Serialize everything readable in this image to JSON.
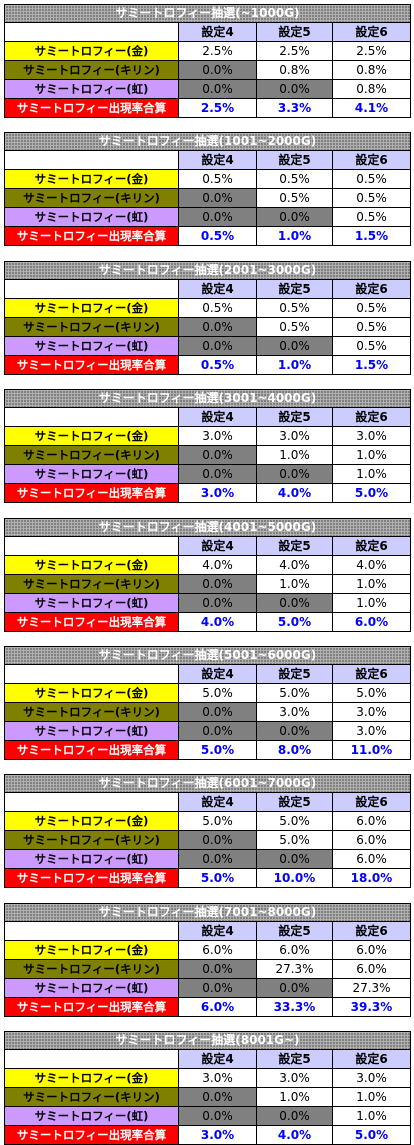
{
  "headers": [
    "設定4",
    "設定5",
    "設定6"
  ],
  "row_labels": {
    "gold": "サミートロフィー(金)",
    "kirin": "サミートロフィー(キリン)",
    "niji": "サミートロフィー(虹)",
    "total": "サミートロフィー出現率合算"
  },
  "colors": {
    "gold_row": "#ffff00",
    "kirin_row": "#808000",
    "niji_row": "#cc99ff",
    "total_row": "#ff0000",
    "header_row": "#ccccff",
    "zero_cell": "#808080",
    "total_value_text": "#0000ff"
  },
  "tables": [
    {
      "title": "サミートロフィー抽選(~1000G)",
      "gold": [
        "2.5%",
        "2.5%",
        "2.5%"
      ],
      "kirin": [
        "0.0%",
        "0.8%",
        "0.8%"
      ],
      "niji": [
        "0.0%",
        "0.0%",
        "0.8%"
      ],
      "total": [
        "2.5%",
        "3.3%",
        "4.1%"
      ]
    },
    {
      "title": "サミートロフィー抽選(1001~2000G)",
      "gold": [
        "0.5%",
        "0.5%",
        "0.5%"
      ],
      "kirin": [
        "0.0%",
        "0.5%",
        "0.5%"
      ],
      "niji": [
        "0.0%",
        "0.0%",
        "0.5%"
      ],
      "total": [
        "0.5%",
        "1.0%",
        "1.5%"
      ]
    },
    {
      "title": "サミートロフィー抽選(2001~3000G)",
      "gold": [
        "0.5%",
        "0.5%",
        "0.5%"
      ],
      "kirin": [
        "0.0%",
        "0.5%",
        "0.5%"
      ],
      "niji": [
        "0.0%",
        "0.0%",
        "0.5%"
      ],
      "total": [
        "0.5%",
        "1.0%",
        "1.5%"
      ]
    },
    {
      "title": "サミートロフィー抽選(3001~4000G)",
      "gold": [
        "3.0%",
        "3.0%",
        "3.0%"
      ],
      "kirin": [
        "0.0%",
        "1.0%",
        "1.0%"
      ],
      "niji": [
        "0.0%",
        "0.0%",
        "1.0%"
      ],
      "total": [
        "3.0%",
        "4.0%",
        "5.0%"
      ]
    },
    {
      "title": "サミートロフィー抽選(4001~5000G)",
      "gold": [
        "4.0%",
        "4.0%",
        "4.0%"
      ],
      "kirin": [
        "0.0%",
        "1.0%",
        "1.0%"
      ],
      "niji": [
        "0.0%",
        "0.0%",
        "1.0%"
      ],
      "total": [
        "4.0%",
        "5.0%",
        "6.0%"
      ]
    },
    {
      "title": "サミートロフィー抽選(5001~6000G)",
      "gold": [
        "5.0%",
        "5.0%",
        "5.0%"
      ],
      "kirin": [
        "0.0%",
        "3.0%",
        "3.0%"
      ],
      "niji": [
        "0.0%",
        "0.0%",
        "3.0%"
      ],
      "total": [
        "5.0%",
        "8.0%",
        "11.0%"
      ]
    },
    {
      "title": "サミートロフィー抽選(6001~7000G)",
      "gold": [
        "5.0%",
        "5.0%",
        "6.0%"
      ],
      "kirin": [
        "0.0%",
        "5.0%",
        "6.0%"
      ],
      "niji": [
        "0.0%",
        "0.0%",
        "6.0%"
      ],
      "total": [
        "5.0%",
        "10.0%",
        "18.0%"
      ]
    },
    {
      "title": "サミートロフィー抽選(7001~8000G)",
      "gold": [
        "6.0%",
        "6.0%",
        "6.0%"
      ],
      "kirin": [
        "0.0%",
        "27.3%",
        "6.0%"
      ],
      "niji": [
        "0.0%",
        "0.0%",
        "27.3%"
      ],
      "total": [
        "6.0%",
        "33.3%",
        "39.3%"
      ]
    },
    {
      "title": "サミートロフィー抽選(8001G~)",
      "gold": [
        "3.0%",
        "3.0%",
        "3.0%"
      ],
      "kirin": [
        "0.0%",
        "1.0%",
        "1.0%"
      ],
      "niji": [
        "0.0%",
        "0.0%",
        "1.0%"
      ],
      "total": [
        "3.0%",
        "4.0%",
        "5.0%"
      ]
    }
  ]
}
